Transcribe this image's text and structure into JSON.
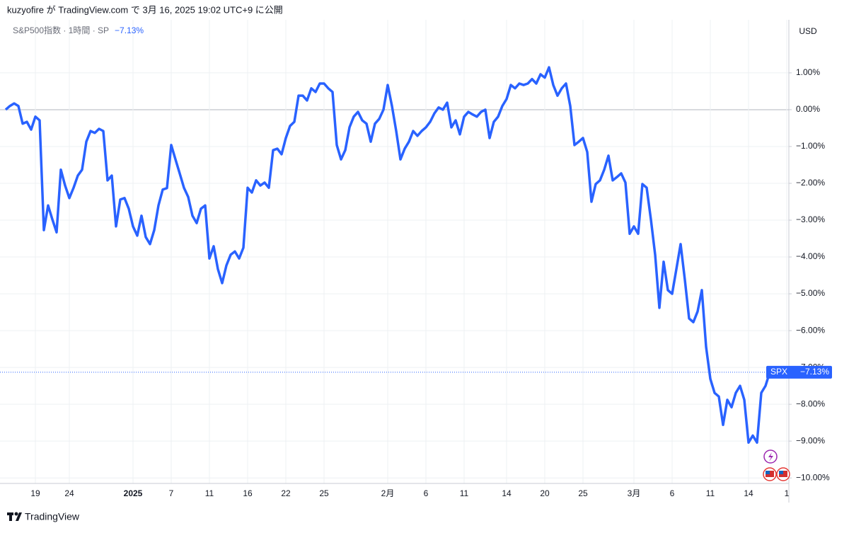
{
  "chart_data": {
    "type": "line",
    "header": "kuzyofire が TradingView.com で 3月 16, 2025 19:02 UTC+9 に公開",
    "change_label": "−7.13%",
    "y_axis_unit": "USD",
    "price_tag": {
      "symbol": "SPX",
      "label": "−7.13%"
    },
    "footer": "TradingView",
    "grid": true,
    "categories": [
      null,
      null,
      null,
      null,
      null,
      null,
      null,
      "19",
      null,
      null,
      null,
      null,
      null,
      null,
      null,
      "24",
      null,
      null,
      null,
      null,
      null,
      null,
      null,
      null,
      null,
      null,
      null,
      null,
      null,
      null,
      "2025",
      null,
      null,
      null,
      null,
      null,
      null,
      null,
      null,
      "7",
      null,
      null,
      null,
      null,
      null,
      null,
      null,
      null,
      "11",
      null,
      null,
      null,
      null,
      null,
      null,
      null,
      null,
      "16",
      null,
      null,
      null,
      null,
      null,
      null,
      null,
      null,
      "22",
      null,
      null,
      null,
      null,
      null,
      null,
      null,
      null,
      "25",
      null,
      null,
      null,
      null,
      null,
      null,
      null,
      null,
      null,
      null,
      null,
      null,
      null,
      null,
      "2月",
      null,
      null,
      null,
      null,
      null,
      null,
      null,
      null,
      "6",
      null,
      null,
      null,
      null,
      null,
      null,
      null,
      null,
      "11",
      null,
      null,
      null,
      null,
      null,
      null,
      null,
      null,
      null,
      "14",
      null,
      null,
      null,
      null,
      null,
      null,
      null,
      null,
      "20",
      null,
      null,
      null,
      null,
      null,
      null,
      null,
      null,
      "25",
      null,
      null,
      null,
      null,
      null,
      null,
      null,
      null,
      null,
      null,
      null,
      "3月",
      null,
      null,
      null,
      null,
      null,
      null,
      null,
      null,
      "6",
      null,
      null,
      null,
      null,
      null,
      null,
      null,
      null,
      "11",
      null,
      null,
      null,
      null,
      null,
      null,
      null,
      null,
      "14",
      null,
      null,
      null,
      null,
      null,
      null,
      null,
      null,
      "1"
    ],
    "series": [
      {
        "name": "S&P500指数 · 1時間 · SP",
        "color": "#2962ff",
        "values": [
          0,
          0.1,
          0.17,
          0.1,
          -0.38,
          -0.33,
          -0.54,
          -0.19,
          -0.29,
          -3.27,
          -2.6,
          -2.98,
          -3.33,
          -1.63,
          -2.06,
          -2.4,
          -2.12,
          -1.79,
          -1.63,
          -0.87,
          -0.58,
          -0.63,
          -0.52,
          -0.58,
          -1.92,
          -1.79,
          -3.17,
          -2.44,
          -2.4,
          -2.69,
          -3.17,
          -3.42,
          -2.88,
          -3.46,
          -3.65,
          -3.27,
          -2.6,
          -2.17,
          -2.13,
          -0.96,
          -1.35,
          -1.73,
          -2.12,
          -2.37,
          -2.88,
          -3.08,
          -2.69,
          -2.6,
          -4.04,
          -3.71,
          -4.33,
          -4.71,
          -4.23,
          -3.94,
          -3.85,
          -4.04,
          -3.75,
          -2.12,
          -2.25,
          -1.92,
          -2.06,
          -1.98,
          -2.12,
          -1.1,
          -1.06,
          -1.21,
          -0.77,
          -0.44,
          -0.33,
          0.38,
          0.38,
          0.25,
          0.58,
          0.48,
          0.71,
          0.71,
          0.58,
          0.48,
          -0.96,
          -1.35,
          -1.1,
          -0.48,
          -0.19,
          -0.06,
          -0.29,
          -0.38,
          -0.87,
          -0.38,
          -0.25,
          0,
          0.67,
          0.1,
          -0.58,
          -1.35,
          -1.06,
          -0.87,
          -0.58,
          -0.71,
          -0.58,
          -0.48,
          -0.33,
          -0.1,
          0.06,
          0,
          0.19,
          -0.48,
          -0.29,
          -0.67,
          -0.19,
          -0.06,
          -0.13,
          -0.19,
          -0.06,
          0,
          -0.77,
          -0.33,
          -0.19,
          0.1,
          0.29,
          0.67,
          0.58,
          0.71,
          0.67,
          0.71,
          0.83,
          0.71,
          0.96,
          0.87,
          1.15,
          0.67,
          0.38,
          0.58,
          0.71,
          0.1,
          -0.96,
          -0.87,
          -0.77,
          -1.15,
          -2.5,
          -2.02,
          -1.92,
          -1.63,
          -1.25,
          -1.92,
          -1.83,
          -1.73,
          -1.98,
          -3.37,
          -3.17,
          -3.37,
          -2.02,
          -2.12,
          -2.98,
          -3.94,
          -5.38,
          -4.13,
          -4.9,
          -5.0,
          -4.33,
          -3.65,
          -4.62,
          -5.67,
          -5.77,
          -5.48,
          -4.9,
          -6.44,
          -7.31,
          -7.69,
          -7.79,
          -8.56,
          -7.88,
          -8.08,
          -7.69,
          -7.5,
          -7.88,
          -9.04,
          -8.85,
          -9.04,
          -7.69,
          -7.5,
          -7.13,
          null,
          null,
          null,
          null
        ]
      }
    ],
    "ylim": [
      -10.15,
      2.44
    ],
    "yticks": [
      {
        "value": 1,
        "label": "1.00%"
      },
      {
        "value": 0,
        "label": "0.00%"
      },
      {
        "value": -1,
        "label": "−1.00%"
      },
      {
        "value": -2,
        "label": "−2.00%"
      },
      {
        "value": -3,
        "label": "−3.00%"
      },
      {
        "value": -4,
        "label": "−4.00%"
      },
      {
        "value": -5,
        "label": "−5.00%"
      },
      {
        "value": -6,
        "label": "−6.00%"
      },
      {
        "value": -7,
        "label": "−7.00%"
      },
      {
        "value": -8,
        "label": "−8.00%"
      },
      {
        "value": -9,
        "label": "−9.00%"
      },
      {
        "value": -10,
        "label": "−10.00%"
      }
    ]
  }
}
